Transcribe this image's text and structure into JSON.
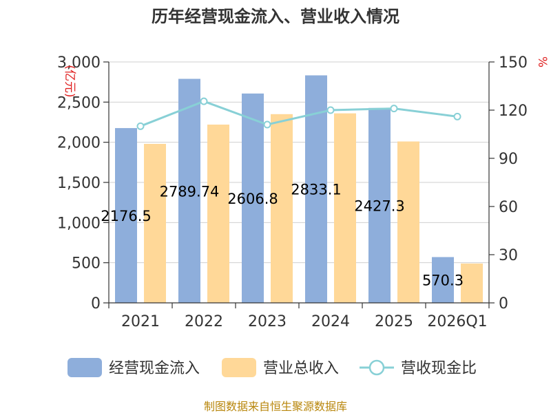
{
  "chart_data": {
    "type": "bar",
    "title": "历年经营现金流入、营业收入情况",
    "categories": [
      "2021",
      "2022",
      "2023",
      "2024",
      "2025",
      "2026Q1"
    ],
    "series": [
      {
        "name": "经营现金流入",
        "axis": "left",
        "kind": "bar",
        "color": "#8eaedb",
        "values": [
          2176.5,
          2789.7,
          2606.8,
          2833.1,
          2427.3,
          570.3
        ]
      },
      {
        "name": "营业总收入",
        "axis": "left",
        "kind": "bar",
        "color": "#ffd898",
        "values": [
          1980,
          2220,
          2350,
          2360,
          2010,
          490
        ]
      },
      {
        "name": "营收现金比",
        "axis": "right",
        "kind": "line",
        "color": "#88d0d6",
        "values": [
          110,
          125.5,
          111,
          120,
          121,
          116
        ]
      }
    ],
    "data_labels": [
      "2176.5",
      "2789.74",
      "2606.8",
      "2833.1",
      "2427.3",
      "570.3"
    ],
    "y_left": {
      "min": 0,
      "max": 3000,
      "step": 500,
      "unit": "(亿元)",
      "tick_labels": [
        "0",
        "500",
        "1,000",
        "1,500",
        "2,000",
        "2,500",
        "3,000"
      ]
    },
    "y_right": {
      "min": 0,
      "max": 150,
      "step": 30,
      "unit": "%",
      "tick_labels": [
        "0",
        "30",
        "60",
        "90",
        "120",
        "150"
      ]
    },
    "grid": true,
    "legend_position": "bottom"
  },
  "source_note": "制图数据来自恒生聚源数据库"
}
